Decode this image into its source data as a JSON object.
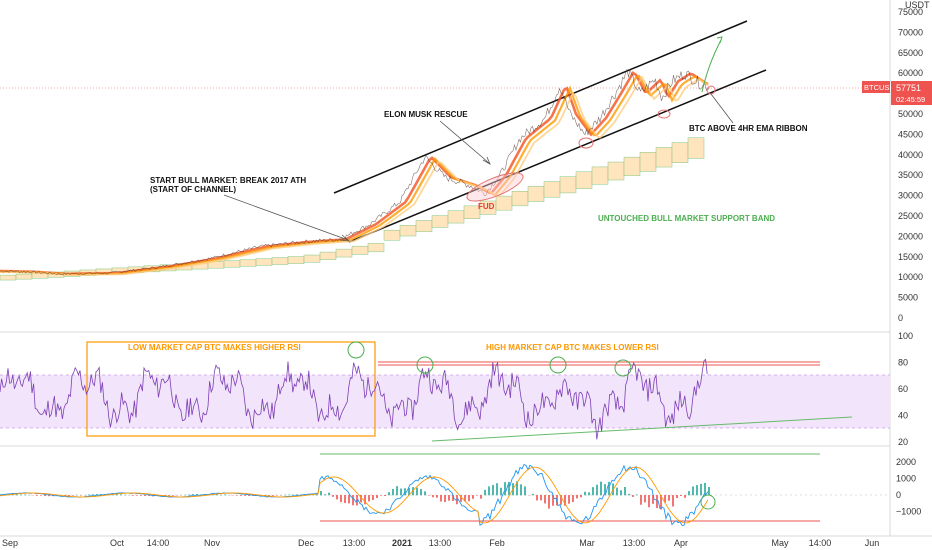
{
  "price_panel": {
    "currency_label": "USDT",
    "symbol_tag": "BTCUSDT",
    "last_price": "57751",
    "countdown": "02:45:59",
    "y_ticks": [
      "75000",
      "70000",
      "65000",
      "60000",
      "55000",
      "50000",
      "45000",
      "40000",
      "35000",
      "30000",
      "25000",
      "20000",
      "15000",
      "10000",
      "5000",
      "0"
    ]
  },
  "rsi_panel": {
    "y_ticks": [
      "100",
      "80",
      "60",
      "40",
      "20"
    ]
  },
  "osc_panel": {
    "y_ticks": [
      "2000",
      "1000",
      "0",
      "−1000"
    ]
  },
  "time_axis": {
    "labels": [
      "Sep",
      "Oct",
      "14:00",
      "Nov",
      "Dec",
      "13:00",
      "2021",
      "13:00",
      "Feb",
      "Mar",
      "13:00",
      "Apr",
      "May",
      "14:00",
      "Jun"
    ]
  },
  "annotations": {
    "start_bull": [
      "START BULL MARKET: BREAK 2017 ATH",
      "(START OF CHANNEL)"
    ],
    "elon": "ELON MUSK RESCUE",
    "fud": "FUD",
    "btc_above": "BTC ABOVE 4HR EMA RIBBON",
    "support_band": "UNTOUCHED BULL MARKET SUPPORT BAND",
    "low_cap": "LOW MARKET CAP BTC MAKES HIGHER RSI",
    "high_cap": "HIGH MARKET CAP BTC MAKES LOWER RSI"
  },
  "colors": {
    "price_line": "#ff6d00",
    "ema_ribbon": [
      "#f4511e",
      "#ff9800",
      "#ffcc80"
    ],
    "band_fill": "#ffe0b2",
    "band_green": "#81c784",
    "rsi_line": "#7e3fb5",
    "rsi_band": "#f1e4fb",
    "orange_box": "#ff9800",
    "green_circle": "#4caf50",
    "red_ellipse": "#e57373",
    "macd": "#2196f3",
    "signal": "#ff9800",
    "hist_pos": "#26a69a",
    "hist_neg": "#ef5350"
  },
  "chart_data": {
    "type": "line",
    "title": "",
    "xlabel": "",
    "ylabel": "USDT",
    "x": [
      "Sep",
      "Oct",
      "Nov",
      "Dec",
      "2021",
      "Feb",
      "Mar",
      "Apr"
    ],
    "series": [
      {
        "name": "BTCUSDT",
        "values": [
          11500,
          10800,
          13700,
          19300,
          29000,
          33000,
          45000,
          58000
        ]
      }
    ],
    "ylim": [
      0,
      75000
    ],
    "last_price": 57751,
    "rsi": {
      "ylim": [
        20,
        100
      ],
      "band": [
        30,
        70
      ]
    },
    "oscillator": {
      "ylim": [
        -2000,
        2500
      ]
    }
  }
}
